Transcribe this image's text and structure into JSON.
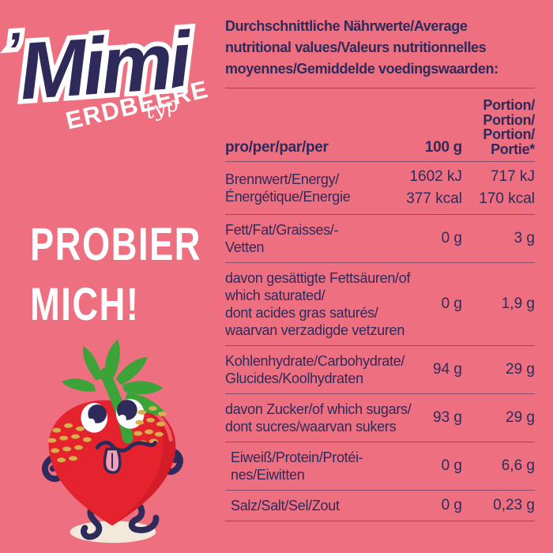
{
  "brand": {
    "logo_accent": "’",
    "logo_text": "Mimi",
    "type_label": "typ",
    "flavor": "ERDBEERE"
  },
  "tagline": {
    "line1": "PROBIER",
    "line2": "MICH!"
  },
  "mascot": {
    "description": "dancing strawberry character with green leaf crown, googly eyes, gold freckles, tongue sticking out, squiggly arms and legs, standing over a cream oval shadow"
  },
  "colors": {
    "background": "#ee7080",
    "text_navy": "#2e2a5a",
    "white": "#ffffff",
    "berry_red": "#e5232e",
    "leaf_green": "#3ba338",
    "freckle_gold": "#d9ae4e",
    "tongue_pink": "#f09fb4",
    "shadow_cream": "#f2e9da"
  },
  "nutrition": {
    "title_lines": [
      "Durchschnittliche Nährwerte/Average",
      "nutritional values/Valeurs nutritionnelles",
      "moyennes/Gemiddelde voedingswaarden:"
    ],
    "header": {
      "label": "pro/per/par/per",
      "col1": "100 g",
      "col2_lines": [
        "Portion/",
        "Portion/",
        "Portion/",
        "Portie*"
      ]
    },
    "rows": [
      {
        "label_lines": [
          "Brennwert/Energy/",
          "Énergétique/Energie"
        ],
        "per100_lines": [
          "1602 kJ",
          "377 kcal"
        ],
        "portion_lines": [
          "717 kJ",
          "170 kcal"
        ]
      },
      {
        "label_lines": [
          "Fett/Fat/Graisses/-",
          "Vetten"
        ],
        "per100_lines": [
          "0 g"
        ],
        "portion_lines": [
          "3 g"
        ]
      },
      {
        "label_lines": [
          "davon gesättigte Fettsäuren/of",
          "which saturated/",
          "dont acides gras saturés/",
          "waarvan verzadigde vetzuren"
        ],
        "per100_lines": [
          "0 g"
        ],
        "portion_lines": [
          "1,9 g"
        ]
      },
      {
        "label_lines": [
          "Kohlenhydrate/Carbohydrate/",
          "Glucides/Koolhydraten"
        ],
        "per100_lines": [
          "94 g"
        ],
        "portion_lines": [
          "29 g"
        ]
      },
      {
        "label_lines": [
          "davon Zucker/of which sugars/",
          "dont sucres/waarvan sukers"
        ],
        "per100_lines": [
          "93 g"
        ],
        "portion_lines": [
          "29 g"
        ]
      },
      {
        "label_lines": [
          "Eiweiß/Protein/Protéi-",
          "nes/Eiwitten"
        ],
        "per100_lines": [
          "0 g"
        ],
        "portion_lines": [
          "6,6 g"
        ],
        "indent": true
      },
      {
        "label_lines": [
          "Salz/Salt/Sel/Zout"
        ],
        "per100_lines": [
          "0 g"
        ],
        "portion_lines": [
          "0,23 g"
        ],
        "indent": true
      }
    ]
  }
}
